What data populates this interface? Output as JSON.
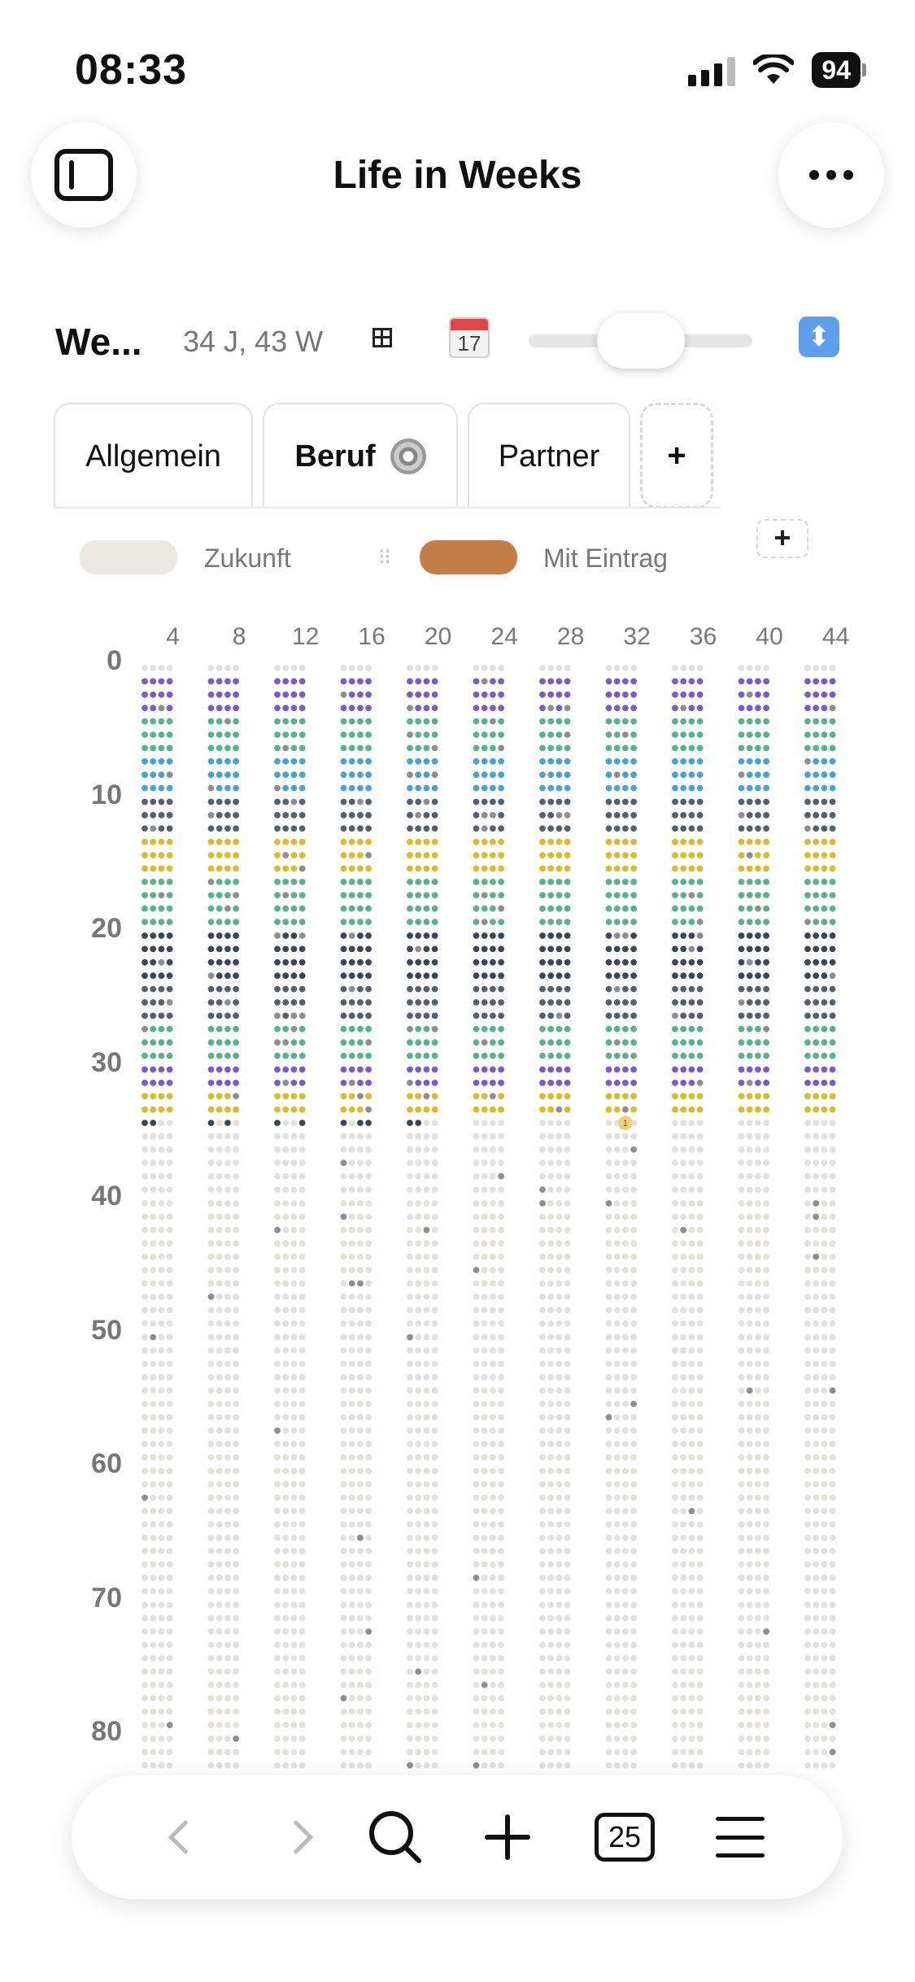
{
  "status_bar": {
    "time": "08:33",
    "battery": "94"
  },
  "header": {
    "title": "Life in Weeks"
  },
  "controls": {
    "profile_name": "We...",
    "age": "34 J, 43 W",
    "calendar_day": "17",
    "updown_glyph": "⬍"
  },
  "tabs": [
    {
      "label": "Allgemein",
      "active": false
    },
    {
      "label": "Beruf",
      "active": true
    },
    {
      "label": "Partner",
      "active": false
    }
  ],
  "tab_add_label": "+",
  "legend": {
    "items": [
      {
        "label": "Zukunft",
        "color": "#ebe8e3"
      },
      {
        "label": "Mit Eintrag",
        "color": "#c47e47"
      }
    ],
    "add_label": "+"
  },
  "grid": {
    "week_axis_labels": [
      "4",
      "8",
      "12",
      "16",
      "20",
      "24",
      "28",
      "32",
      "36",
      "40",
      "44"
    ],
    "age_axis_labels": [
      "0",
      "10",
      "20",
      "30",
      "40",
      "50",
      "60",
      "70",
      "80"
    ],
    "current_week_marker": "1",
    "colors": {
      "future": "#e2e0dc",
      "purple": "#7a5cc8",
      "green": "#59b38a",
      "blue": "#4aa2cf",
      "slate": "#56606b",
      "gold": "#d8bc2e",
      "navy": "#3c4656",
      "entry_future": "#8e8e8e"
    }
  },
  "bottom_bar": {
    "today_label": "25"
  }
}
